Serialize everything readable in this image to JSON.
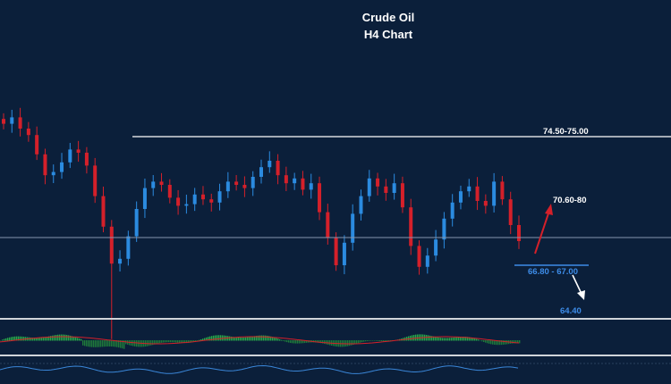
{
  "chart_data": {
    "type": "candlestick",
    "title": "Crude Oil",
    "subtitle": "H4 Chart",
    "annotations": {
      "resistance_zone": "74.50-75.00",
      "upside_target": "70.60-80",
      "support_zone": "66.80 - 67.00",
      "downside_target": "64.40"
    },
    "candle_closes_approx": [
      75.8,
      76.2,
      75.5,
      75.1,
      73.9,
      72.6,
      72.8,
      73.4,
      74.2,
      74.0,
      73.2,
      71.3,
      69.4,
      67.1,
      67.4,
      68.8,
      70.5,
      71.8,
      72.2,
      72.0,
      71.2,
      70.7,
      70.8,
      71.4,
      71.1,
      70.9,
      71.6,
      72.2,
      72.0,
      71.8,
      72.5,
      73.1,
      73.5,
      72.6,
      72.1,
      72.4,
      71.7,
      72.1,
      70.3,
      68.7,
      67.0,
      68.4,
      70.2,
      71.3,
      72.4,
      71.9,
      71.5,
      72.1,
      70.6,
      68.2,
      66.9,
      67.6,
      68.6,
      69.9,
      70.9,
      71.6,
      71.9,
      71.0,
      70.7,
      72.2,
      71.1,
      69.5,
      68.5
    ],
    "color_up": "#2b8be0",
    "color_down": "#d4202a",
    "color_support": "#3d8ce8",
    "indicators": [
      "histogram oscillator",
      "oscillator line"
    ]
  }
}
